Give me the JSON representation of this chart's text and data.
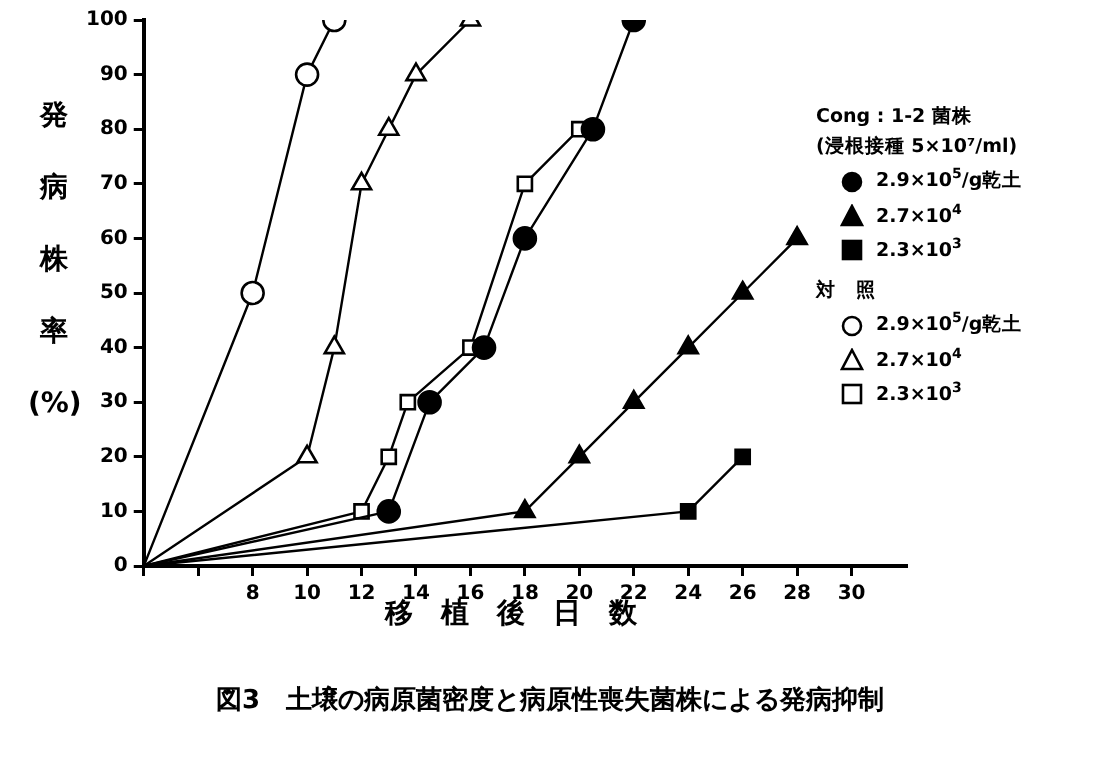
{
  "chart_data": {
    "type": "line",
    "title": "図3　土壌の病原菌密度と病原性喪失菌株による発病抑制",
    "xlabel": "移植後日数",
    "ylabel": "発病株率(%)",
    "legend_title": "Cong : 1-2 菌株\n(浸根接種 5×10⁷/ml)",
    "annotations": [
      "対　照"
    ],
    "legend": "right",
    "grid": false,
    "line_style": "solid",
    "xlim": [
      4,
      32
    ],
    "xticks": [
      {
        "value": 4,
        "label": null
      },
      {
        "value": 6,
        "label": null
      },
      8,
      10,
      12,
      14,
      16,
      18,
      20,
      22,
      24,
      26,
      28,
      30
    ],
    "ylim": [
      0,
      100
    ],
    "yticks": [
      0,
      10,
      20,
      30,
      40,
      50,
      60,
      70,
      80,
      90,
      100
    ],
    "series": [
      {
        "name": "2.9×10$^{5}$/g乾土",
        "color": "#000000",
        "marker": "circle",
        "x": [
          4,
          13,
          14.5,
          16.5,
          18,
          20.5,
          22
        ],
        "values": [
          0,
          10,
          30,
          40,
          60,
          80,
          100
        ]
      },
      {
        "name": "2.7×10$^{4}$",
        "color": "#000000",
        "marker": "triangle",
        "x": [
          4,
          18,
          20,
          22,
          24,
          26,
          28
        ],
        "values": [
          0,
          10,
          20,
          30,
          40,
          50,
          60
        ]
      },
      {
        "name": "2.3×10$^{3}$",
        "color": "#000000",
        "marker": "square",
        "x": [
          4,
          24,
          26
        ],
        "values": [
          0,
          10,
          20
        ]
      },
      {
        "name": "2.9×10$^{5}$/g乾土",
        "color": "#ffffff",
        "marker": "circle",
        "x": [
          4,
          8,
          10,
          11
        ],
        "values": [
          0,
          50,
          90,
          100
        ]
      },
      {
        "name": "2.7×10$^{4}$",
        "color": "#ffffff",
        "marker": "triangle",
        "x": [
          4,
          10,
          11,
          12,
          13,
          14,
          16
        ],
        "values": [
          0,
          20,
          40,
          70,
          80,
          90,
          100
        ]
      },
      {
        "name": "2.3×10$^{3}$",
        "color": "#ffffff",
        "marker": "square",
        "x": [
          4,
          12,
          13,
          13.7,
          16,
          18,
          20
        ],
        "values": [
          0,
          10,
          20,
          30,
          40,
          70,
          80
        ]
      }
    ]
  }
}
